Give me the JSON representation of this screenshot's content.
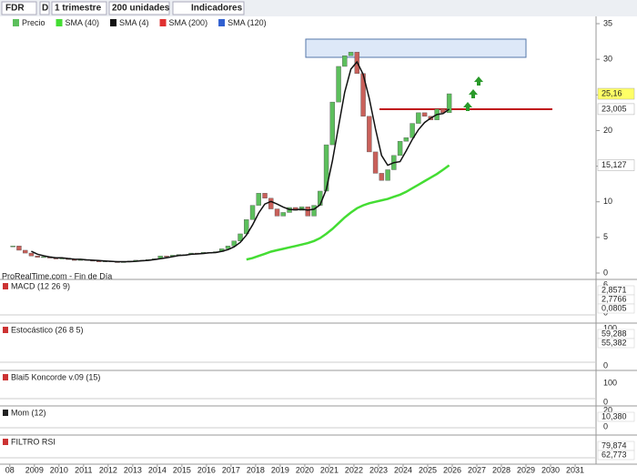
{
  "toolbar": {
    "symbol": "FDR",
    "mode": "D",
    "period": "1 trimestre",
    "units": "200 unidades",
    "indicators": "Indicadores"
  },
  "legend": [
    "Precio",
    "SMA (40)",
    "SMA (4)",
    "SMA (200)",
    "SMA (120)"
  ],
  "source": "ProRealTime.com - Fin de Día",
  "chart_data": {
    "type": "candlestick",
    "x": [
      2008.125,
      2008.375,
      2008.625,
      2008.875,
      2009.125,
      2009.375,
      2009.625,
      2009.875,
      2010.125,
      2010.375,
      2010.625,
      2010.875,
      2011.125,
      2011.375,
      2011.625,
      2011.875,
      2012.125,
      2012.375,
      2012.625,
      2012.875,
      2013.125,
      2013.375,
      2013.625,
      2013.875,
      2014.125,
      2014.375,
      2014.625,
      2014.875,
      2015.125,
      2015.375,
      2015.625,
      2015.875,
      2016.125,
      2016.375,
      2016.625,
      2016.875,
      2017.125,
      2017.375,
      2017.625,
      2017.875,
      2018.125,
      2018.375,
      2018.625,
      2018.875,
      2019.125,
      2019.375,
      2019.625,
      2019.875,
      2020.125,
      2020.375,
      2020.625,
      2020.875,
      2021.125,
      2021.375,
      2021.625,
      2021.875,
      2022.125,
      2022.375,
      2022.625,
      2022.875,
      2023.125,
      2023.375,
      2023.625,
      2023.875,
      2024.125,
      2024.375,
      2024.625,
      2024.875,
      2025.125,
      2025.375,
      2025.625,
      2025.875
    ],
    "values": [
      3.8,
      3.2,
      2.8,
      2.4,
      2.2,
      2.3,
      2.1,
      2.0,
      2.1,
      1.9,
      1.8,
      1.9,
      1.8,
      1.7,
      1.6,
      1.7,
      1.6,
      1.5,
      1.6,
      1.7,
      1.8,
      1.8,
      1.9,
      2.0,
      2.4,
      2.3,
      2.5,
      2.6,
      2.6,
      2.8,
      2.7,
      2.9,
      2.9,
      3.0,
      3.4,
      3.8,
      4.5,
      5.5,
      7.5,
      9.5,
      11.2,
      10.5,
      9.0,
      8.0,
      8.5,
      9.2,
      8.8,
      9.3,
      8.0,
      9.5,
      11.5,
      18.0,
      24.0,
      29.0,
      30.5,
      31.0,
      28.0,
      22.0,
      17.0,
      14.0,
      13.0,
      14.5,
      16.5,
      18.5,
      19.0,
      21.0,
      22.5,
      22.0,
      21.5,
      23.0,
      22.5,
      25.16
    ],
    "up_color": "#5cbf5c",
    "down_color": "#c9605a",
    "series": [
      {
        "name": "SMA (4)",
        "color": "#111111",
        "values": [
          null,
          null,
          null,
          3.05,
          2.65,
          2.43,
          2.25,
          2.15,
          2.13,
          2.03,
          1.95,
          1.93,
          1.85,
          1.8,
          1.75,
          1.7,
          1.65,
          1.6,
          1.6,
          1.6,
          1.65,
          1.73,
          1.78,
          1.88,
          2.0,
          2.13,
          2.3,
          2.45,
          2.5,
          2.63,
          2.68,
          2.75,
          2.83,
          2.88,
          3.05,
          3.28,
          3.68,
          4.3,
          5.33,
          6.75,
          8.43,
          9.68,
          10.05,
          9.68,
          9.25,
          8.93,
          8.88,
          8.95,
          8.83,
          8.95,
          9.58,
          11.75,
          15.75,
          20.63,
          25.38,
          28.63,
          29.63,
          27.88,
          24.5,
          20.25,
          16.5,
          15.13,
          15.5,
          15.63,
          17.13,
          18.75,
          20.13,
          21.13,
          21.75,
          22.25,
          22.38,
          23.005
        ]
      },
      {
        "name": "SMA (40)",
        "color": "#44dd33",
        "values": [
          null,
          null,
          null,
          null,
          null,
          null,
          null,
          null,
          null,
          null,
          null,
          null,
          null,
          null,
          null,
          null,
          null,
          null,
          null,
          null,
          null,
          null,
          null,
          null,
          null,
          null,
          null,
          null,
          null,
          null,
          null,
          null,
          null,
          null,
          null,
          null,
          null,
          null,
          1.9,
          2.1,
          2.4,
          2.7,
          3.0,
          3.2,
          3.4,
          3.6,
          3.8,
          4.0,
          4.2,
          4.5,
          4.9,
          5.5,
          6.2,
          7.0,
          7.8,
          8.5,
          9.1,
          9.5,
          9.8,
          10.0,
          10.2,
          10.4,
          10.7,
          11.0,
          11.4,
          11.9,
          12.4,
          12.9,
          13.4,
          13.9,
          14.5,
          15.127
        ]
      }
    ],
    "price_labels": [
      {
        "value": 25.16,
        "label": "25,16",
        "color": "#ffff66"
      },
      {
        "value": 23.005,
        "label": "23,005",
        "color": "#ffffff"
      },
      {
        "value": 15.127,
        "label": "15,127",
        "color": "#ffffff"
      }
    ],
    "xlim": [
      2007.6,
      2031.85
    ],
    "ylim": [
      0,
      35
    ],
    "yticks": [
      0,
      5,
      10,
      15,
      20,
      25,
      30,
      35
    ],
    "xticks": [
      {
        "value": 2008,
        "label": "08"
      },
      2009,
      2010,
      2011,
      2012,
      2013,
      2014,
      2015,
      2016,
      2017,
      2018,
      2019,
      2020,
      2021,
      2022,
      2023,
      2024,
      2025,
      2026,
      2027,
      2028,
      2029,
      2030,
      2031
    ]
  },
  "panels": [
    {
      "name": "MACD (12 26 9)",
      "ticks": [
        "6",
        "0"
      ],
      "readouts": [
        "2,8571",
        "2,7766",
        "0,0805"
      ]
    },
    {
      "name": "Estocástico (26 8 5)",
      "ticks": [
        "100",
        "0"
      ],
      "readouts": [
        "59,288",
        "55,382"
      ]
    },
    {
      "name": "Blai5 Koncorde v.09 (15)",
      "ticks": [
        "100",
        "0"
      ],
      "readouts": []
    },
    {
      "name": "Mom (12)",
      "ticks": [
        "20",
        "0"
      ],
      "readouts": [
        "10,380"
      ]
    },
    {
      "name": "FILTRO RSI",
      "ticks": [],
      "readouts": [
        "79,874",
        "62,773"
      ]
    }
  ]
}
